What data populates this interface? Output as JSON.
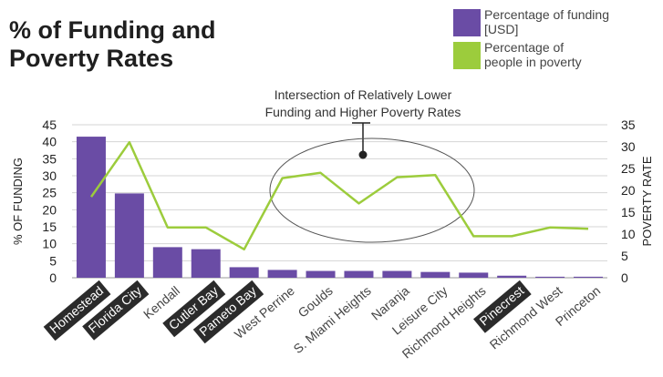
{
  "title": {
    "line1": "% of Funding and",
    "line2": "Poverty Rates"
  },
  "legend": [
    {
      "label": "Percentage of funding [USD]",
      "label_lines": [
        "Percentage of funding",
        "[USD]"
      ],
      "color": "#6a4ca5"
    },
    {
      "label": "Percentage of people in poverty",
      "label_lines": [
        "Percentage of",
        "people in poverty"
      ],
      "color": "#9ccc3c"
    }
  ],
  "annotation": {
    "lines": [
      "Intersection of Relatively Lower",
      "Funding and Higher Poverty Rates"
    ]
  },
  "chart_data": {
    "type": "bar",
    "categories": [
      "Homestead",
      "Florida City",
      "Kendall",
      "Cutler Bay",
      "Pameto Bay",
      "West Perrine",
      "Goulds",
      "S. Miami Heights",
      "Naranja",
      "Leisure City",
      "Richmond Heights",
      "Pinecrest",
      "Richmond West",
      "Princeton"
    ],
    "highlighted_categories": [
      "Homestead",
      "Florida City",
      "Cutler Bay",
      "Pameto Bay",
      "Pinecrest"
    ],
    "series": [
      {
        "name": "Percentage of funding [USD]",
        "type": "bar",
        "axis": "left",
        "color": "#6a4ca5",
        "values": [
          41.5,
          24.8,
          9.0,
          8.4,
          3.1,
          2.3,
          2.0,
          2.0,
          2.0,
          1.7,
          1.5,
          0.6,
          0.3,
          0.3
        ]
      },
      {
        "name": "Percentage of people in poverty",
        "type": "line",
        "axis": "right",
        "color": "#9ccc3c",
        "values": [
          18.5,
          31.0,
          11.5,
          11.5,
          6.5,
          22.8,
          24.0,
          17.0,
          23.0,
          23.5,
          9.5,
          9.5,
          11.5,
          11.2
        ]
      }
    ],
    "ylabel": "% OF FUNDING",
    "y2label": "POVERTY RATE",
    "ylim": [
      0,
      45
    ],
    "y2lim": [
      0,
      35
    ],
    "yticks": [
      0,
      5,
      10,
      15,
      20,
      25,
      30,
      35,
      40,
      45
    ],
    "y2ticks": [
      0,
      5,
      10,
      15,
      20,
      25,
      30,
      35
    ],
    "grid": true,
    "legend_position": "top-right"
  }
}
